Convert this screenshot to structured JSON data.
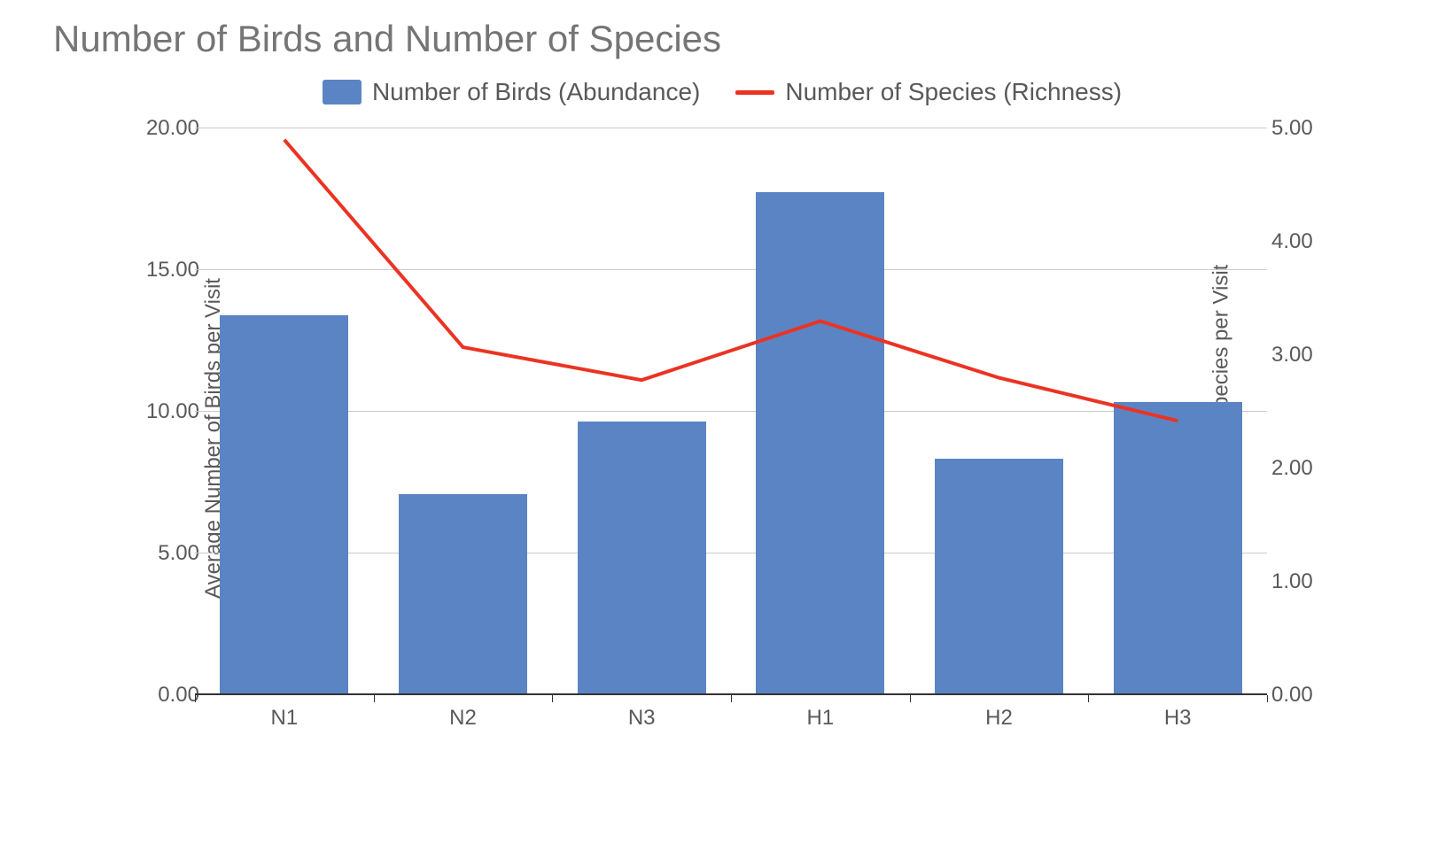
{
  "chart": {
    "type": "bar+line",
    "title": "Number of Birds and Number of Species",
    "title_fontsize": 42,
    "title_color": "#757575",
    "background_color": "#ffffff",
    "grid_color": "#cccccc",
    "text_color": "#595959",
    "categories": [
      "N1",
      "N2",
      "N3",
      "H1",
      "H2",
      "H3"
    ],
    "bars": {
      "label": "Number of Birds (Abundance)",
      "color": "#5b84c4",
      "values": [
        13.4,
        7.1,
        9.65,
        17.75,
        8.35,
        10.35
      ],
      "bar_width_ratio": 0.72
    },
    "line": {
      "label": "Number of Species (Richness)",
      "color": "#eb3323",
      "values": [
        4.9,
        3.07,
        2.78,
        3.3,
        2.8,
        2.42
      ],
      "line_width": 4
    },
    "y_left": {
      "label": "Average Number of Birds per Visit",
      "min": 0,
      "max": 20,
      "ticks": [
        "0.00",
        "5.00",
        "10.00",
        "15.00",
        "20.00"
      ],
      "tick_values": [
        0,
        5,
        10,
        15,
        20
      ]
    },
    "y_right": {
      "label": "Average Number of Species per Visit",
      "min": 0,
      "max": 5,
      "ticks": [
        "0.00",
        "1.00",
        "2.00",
        "3.00",
        "4.00",
        "5.00"
      ],
      "tick_values": [
        0,
        1,
        2,
        3,
        4,
        5
      ]
    },
    "label_fontsize": 24,
    "tick_fontsize": 24,
    "legend_fontsize": 28
  }
}
